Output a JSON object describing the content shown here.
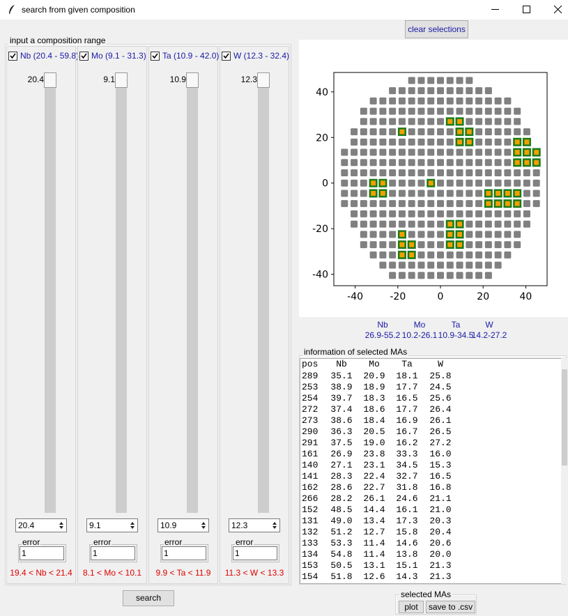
{
  "window": {
    "title": "search from given composition"
  },
  "clear_button": "clear selections",
  "composition_panel": {
    "title": "input a composition range",
    "elements": [
      {
        "checkbox": "Nb (20.4 - 59.8)",
        "slider_value": "20.4",
        "spinbox": "20.4",
        "error_label": "error",
        "error": "1",
        "range": "19.4 < Nb < 21.4"
      },
      {
        "checkbox": "Mo (9.1 - 31.3)",
        "slider_value": "9.1",
        "spinbox": "9.1",
        "error_label": "error",
        "error": "1",
        "range": "8.1 < Mo < 10.1"
      },
      {
        "checkbox": "Ta (10.9 - 42.0)",
        "slider_value": "10.9",
        "spinbox": "10.9",
        "error_label": "error",
        "error": "1",
        "range": "9.9 < Ta < 11.9"
      },
      {
        "checkbox": "W (12.3 - 32.4)",
        "slider_value": "12.3",
        "spinbox": "12.3",
        "error_label": "error",
        "error": "1",
        "range": "11.3 < W < 13.3"
      }
    ]
  },
  "search_button": "search",
  "chart_data": {
    "type": "scatter",
    "xlim": [
      -50,
      50
    ],
    "ylim": [
      -45,
      48.5
    ],
    "xticks": [
      -40,
      -20,
      0,
      20,
      40
    ],
    "yticks": [
      -40,
      -20,
      0,
      20,
      40
    ],
    "series": [
      {
        "color": "#808080",
        "rows": [
          {
            "y": 45,
            "x": [
              -13.5,
              -9,
              -4.5,
              0,
              4.5,
              9,
              13.5
            ]
          },
          {
            "y": 40.5,
            "x": [
              -22.5,
              -18,
              -13.5,
              -9,
              -4.5,
              0,
              4.5,
              9,
              13.5,
              18,
              22.5
            ]
          },
          {
            "y": 36,
            "x": [
              -31.5,
              -27,
              -22.5,
              -18,
              -13.5,
              -9,
              -4.5,
              0,
              4.5,
              9,
              13.5,
              18,
              22.5,
              27,
              31.5
            ]
          },
          {
            "y": 31.5,
            "x": [
              -36,
              -31.5,
              -27,
              -22.5,
              -18,
              -13.5,
              -9,
              -4.5,
              0,
              4.5,
              9,
              13.5,
              18,
              22.5,
              27,
              31.5,
              36
            ]
          },
          {
            "y": 27,
            "x": [
              -36,
              -31.5,
              -27,
              -22.5,
              -18,
              -13.5,
              -9,
              -4.5,
              0,
              4.5,
              9,
              13.5,
              18,
              22.5,
              27,
              31.5,
              36
            ]
          },
          {
            "y": 22.5,
            "x": [
              -40.5,
              -36,
              -31.5,
              -27,
              -22.5,
              -18,
              -13.5,
              -9,
              -4.5,
              0,
              4.5,
              9,
              13.5,
              18,
              22.5,
              27,
              31.5,
              36,
              40.5
            ]
          },
          {
            "y": 18,
            "x": [
              -40.5,
              -36,
              -31.5,
              -27,
              -22.5,
              -18,
              -13.5,
              -9,
              -4.5,
              0,
              4.5,
              9,
              13.5,
              18,
              22.5,
              27,
              31.5,
              36,
              40.5
            ]
          },
          {
            "y": 13.5,
            "x": [
              -45,
              -40.5,
              -36,
              -31.5,
              -27,
              -22.5,
              -18,
              -13.5,
              -9,
              -4.5,
              0,
              4.5,
              9,
              13.5,
              18,
              22.5,
              27,
              31.5,
              36,
              40.5,
              45
            ]
          },
          {
            "y": 9,
            "x": [
              -45,
              -40.5,
              -36,
              -31.5,
              -27,
              -22.5,
              -18,
              -13.5,
              -9,
              -4.5,
              0,
              4.5,
              9,
              13.5,
              18,
              22.5,
              27,
              31.5,
              36,
              40.5,
              45
            ]
          },
          {
            "y": 4.5,
            "x": [
              -45,
              -40.5,
              -36,
              -31.5,
              -27,
              -22.5,
              -18,
              -13.5,
              -9,
              -4.5,
              0,
              4.5,
              9,
              13.5,
              18,
              22.5,
              27,
              31.5,
              36,
              40.5,
              45
            ]
          },
          {
            "y": 0,
            "x": [
              -45,
              -40.5,
              -36,
              -31.5,
              -27,
              -22.5,
              -18,
              -13.5,
              -9,
              -4.5,
              0,
              4.5,
              9,
              13.5,
              18,
              22.5,
              27,
              31.5,
              36,
              40.5,
              45
            ]
          },
          {
            "y": -4.5,
            "x": [
              -45,
              -40.5,
              -36,
              -31.5,
              -27,
              -22.5,
              -18,
              -13.5,
              -9,
              -4.5,
              0,
              4.5,
              9,
              13.5,
              18,
              22.5,
              27,
              31.5,
              36,
              40.5,
              45
            ]
          },
          {
            "y": -9,
            "x": [
              -45,
              -40.5,
              -36,
              -31.5,
              -27,
              -22.5,
              -18,
              -13.5,
              -9,
              -4.5,
              0,
              4.5,
              9,
              13.5,
              18,
              22.5,
              27,
              31.5,
              36,
              40.5,
              45
            ]
          },
          {
            "y": -13.5,
            "x": [
              -40.5,
              -36,
              -31.5,
              -27,
              -22.5,
              -18,
              -13.5,
              -9,
              -4.5,
              0,
              4.5,
              9,
              13.5,
              18,
              22.5,
              27,
              31.5,
              36,
              40.5
            ]
          },
          {
            "y": -18,
            "x": [
              -40.5,
              -36,
              -31.5,
              -27,
              -22.5,
              -18,
              -13.5,
              -9,
              -4.5,
              0,
              4.5,
              9,
              13.5,
              18,
              22.5,
              27,
              31.5,
              36,
              40.5
            ]
          },
          {
            "y": -22.5,
            "x": [
              -36,
              -31.5,
              -27,
              -22.5,
              -18,
              -13.5,
              -9,
              -4.5,
              0,
              4.5,
              9,
              13.5,
              18,
              22.5,
              27,
              31.5,
              36
            ]
          },
          {
            "y": -27,
            "x": [
              -36,
              -31.5,
              -27,
              -22.5,
              -18,
              -13.5,
              -9,
              -4.5,
              0,
              4.5,
              9,
              13.5,
              18,
              22.5,
              27,
              31.5,
              36
            ]
          },
          {
            "y": -31.5,
            "x": [
              -31.5,
              -27,
              -22.5,
              -18,
              -13.5,
              -9,
              -4.5,
              0,
              4.5,
              9,
              13.5,
              18,
              22.5,
              27,
              31.5
            ]
          },
          {
            "y": -36,
            "x": [
              -27,
              -22.5,
              -18,
              -13.5,
              -9,
              -4.5,
              0,
              4.5,
              9,
              13.5,
              18,
              22.5,
              27
            ]
          },
          {
            "y": -40.5,
            "x": [
              -22.5,
              -18,
              -13.5,
              -9,
              -4.5,
              0,
              4.5,
              9,
              13.5,
              18,
              22.5
            ]
          }
        ]
      },
      {
        "color": "#f0a000",
        "edge_color": "#1a7a1a",
        "x": [
          -18,
          4.5,
          9,
          9,
          13.5,
          9,
          13.5,
          36,
          40.5,
          36,
          40.5,
          45,
          36,
          40.5,
          45,
          -31.5,
          -27,
          -4.5,
          -31.5,
          -27,
          22.5,
          27,
          31.5,
          36,
          22.5,
          27,
          31.5,
          36,
          4.5,
          9,
          -18,
          4.5,
          9,
          -18,
          -13.5,
          4.5,
          9,
          -18,
          -13.5
        ],
        "values": [
          22.5,
          27,
          27,
          22.5,
          22.5,
          18,
          18,
          18,
          18,
          13.5,
          13.5,
          13.5,
          9,
          9,
          9,
          0,
          0,
          0,
          -4.5,
          -4.5,
          -4.5,
          -4.5,
          -4.5,
          -4.5,
          -9,
          -9,
          -9,
          -9,
          -18,
          -18,
          -22.5,
          -22.5,
          -22.5,
          -27,
          -27,
          -27,
          -27,
          -31.5,
          -31.5
        ]
      }
    ]
  },
  "ranges": {
    "headers": [
      "Nb",
      "Mo",
      "Ta",
      "W"
    ],
    "values": [
      "26.9-55.2",
      "10.2-26.1",
      "10.9-34.5",
      "14.2-27.2"
    ]
  },
  "info": {
    "title": "information of selected MAs",
    "columns": [
      "pos",
      "Nb",
      "Mo",
      "Ta",
      "W"
    ],
    "rows": [
      [
        "289",
        "35.1",
        "20.9",
        "18.1",
        "25.8"
      ],
      [
        "253",
        "38.9",
        "18.9",
        "17.7",
        "24.5"
      ],
      [
        "254",
        "39.7",
        "18.3",
        "16.5",
        "25.6"
      ],
      [
        "272",
        "37.4",
        "18.6",
        "17.7",
        "26.4"
      ],
      [
        "273",
        "38.6",
        "18.4",
        "16.9",
        "26.1"
      ],
      [
        "290",
        "36.3",
        "20.5",
        "16.7",
        "26.5"
      ],
      [
        "291",
        "37.5",
        "19.0",
        "16.2",
        "27.2"
      ],
      [
        "161",
        "26.9",
        "23.8",
        "33.3",
        "16.0"
      ],
      [
        "140",
        "27.1",
        "23.1",
        "34.5",
        "15.3"
      ],
      [
        "141",
        "28.3",
        "22.4",
        "32.7",
        "16.5"
      ],
      [
        "162",
        "28.6",
        "22.7",
        "31.8",
        "16.8"
      ],
      [
        "266",
        "28.2",
        "26.1",
        "24.6",
        "21.1"
      ],
      [
        "152",
        "48.5",
        "14.4",
        "16.1",
        "21.0"
      ],
      [
        "131",
        "49.0",
        "13.4",
        "17.3",
        "20.3"
      ],
      [
        "132",
        "51.2",
        "12.7",
        "15.8",
        "20.4"
      ],
      [
        "133",
        "53.3",
        "11.4",
        "14.6",
        "20.6"
      ],
      [
        "134",
        "54.8",
        "11.4",
        "13.8",
        "20.0"
      ],
      [
        "153",
        "50.5",
        "13.1",
        "15.1",
        "21.3"
      ],
      [
        "154",
        "51.8",
        "12.6",
        "14.3",
        "21.3"
      ]
    ]
  },
  "selected_panel": {
    "title": "selected MAs",
    "buttons": [
      "plot",
      "save to .csv"
    ]
  }
}
